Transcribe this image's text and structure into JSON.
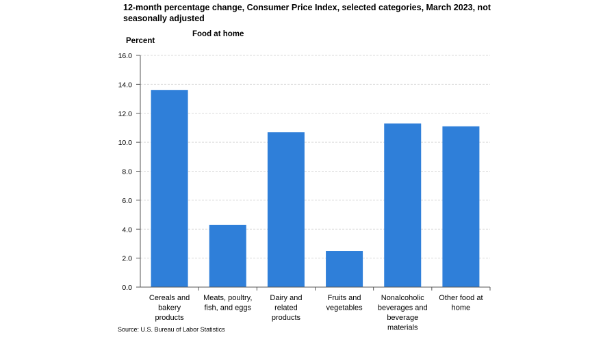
{
  "chart_data": {
    "type": "bar",
    "title": "12-month percentage change, Consumer Price Index, selected categories, March 2023, not seasonally adjusted",
    "subtitle": "Food at home",
    "ylabel": "Percent",
    "xlabel": "",
    "source": "Source: U.S. Bureau of Labor Statistics",
    "ylim": [
      0,
      16
    ],
    "ytick_step": 2,
    "ytick_labels": [
      "0.0",
      "2.0",
      "4.0",
      "6.0",
      "8.0",
      "10.0",
      "12.0",
      "14.0",
      "16.0"
    ],
    "grid": true,
    "legend": "none",
    "bar_color": "#2f7fd9",
    "categories": [
      [
        "Cereals and",
        "bakery",
        "products"
      ],
      [
        "Meats, poultry,",
        "fish, and eggs"
      ],
      [
        "Dairy and",
        "related",
        "products"
      ],
      [
        "Fruits and",
        "vegetables"
      ],
      [
        "Nonalcoholic",
        "beverages and",
        "beverage",
        "materials"
      ],
      [
        "Other food at",
        "home"
      ]
    ],
    "values": [
      13.6,
      4.3,
      10.7,
      2.5,
      11.3,
      11.1
    ]
  }
}
